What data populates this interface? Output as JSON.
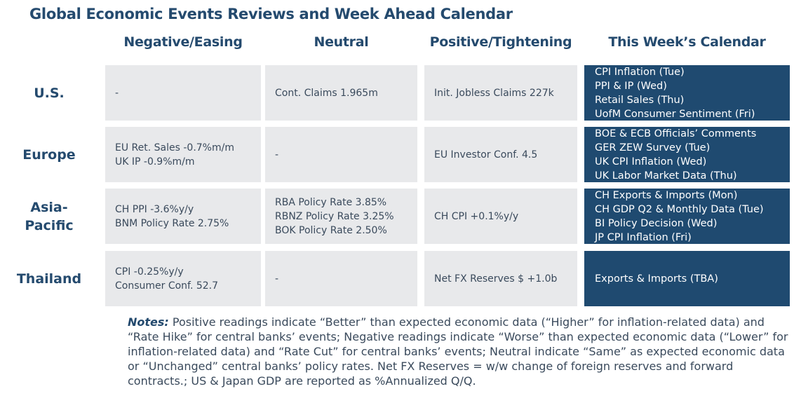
{
  "title": "Global Economic Events Reviews and Week Ahead Calendar",
  "columns": [
    "Negative/Easing",
    "Neutral",
    "Positive/Tightening",
    "This Week’s Calendar"
  ],
  "rows": [
    {
      "region": "U.S.",
      "negative": [
        "-"
      ],
      "neutral": [
        "Cont. Claims 1.965m"
      ],
      "positive": [
        "Init. Jobless Claims 227k"
      ],
      "calendar": [
        "CPI Inflation (Tue)",
        "PPI & IP (Wed)",
        "Retail Sales (Thu)",
        "UofM Consumer Sentiment (Fri)"
      ]
    },
    {
      "region": "Europe",
      "negative": [
        "EU Ret. Sales -0.7%m/m",
        "UK IP -0.9%m/m"
      ],
      "neutral": [
        "-"
      ],
      "positive": [
        "EU Investor Conf. 4.5"
      ],
      "calendar": [
        "BOE & ECB Officials’ Comments",
        "GER ZEW Survey (Tue)",
        "UK CPI Inflation (Wed)",
        "UK Labor Market Data (Thu)"
      ]
    },
    {
      "region_lines": [
        "Asia-",
        "Pacific"
      ],
      "negative": [
        "CH PPI -3.6%y/y",
        "BNM Policy Rate 2.75%"
      ],
      "neutral": [
        "RBA Policy Rate 3.85%",
        "RBNZ Policy Rate 3.25%",
        "BOK Policy Rate 2.50%"
      ],
      "positive": [
        "CH CPI +0.1%y/y"
      ],
      "calendar": [
        "CH Exports & Imports (Mon)",
        "CH GDP Q2 & Monthly Data (Tue)",
        "BI Policy Decision (Wed)",
        "JP CPI Inflation (Fri)"
      ]
    },
    {
      "region": "Thailand",
      "negative": [
        "CPI -0.25%y/y",
        "Consumer Conf. 52.7"
      ],
      "neutral": [
        "-"
      ],
      "positive": [
        "Net FX Reserves $ +1.0b"
      ],
      "calendar": [
        "Exports & Imports (TBA)"
      ]
    }
  ],
  "notes": {
    "label": "Notes:",
    "text": " Positive readings indicate “Better” than expected economic data (“Higher” for inflation-related data) and “Rate Hike” for central banks’ events; Negative readings indicate “Worse” than expected economic data (“Lower” for inflation-related data) and “Rate Cut” for central banks’ events; Neutral indicate “Same” as expected economic data or “Unchanged” central banks’ policy rates. Net FX Reserves = w/w change of foreign reserves and forward contracts.; US & Japan GDP are reported as %Annualized Q/Q."
  },
  "colors": {
    "navy": "#1f4a70",
    "grey": "#e8e9eb",
    "heading": "#244a6e"
  }
}
